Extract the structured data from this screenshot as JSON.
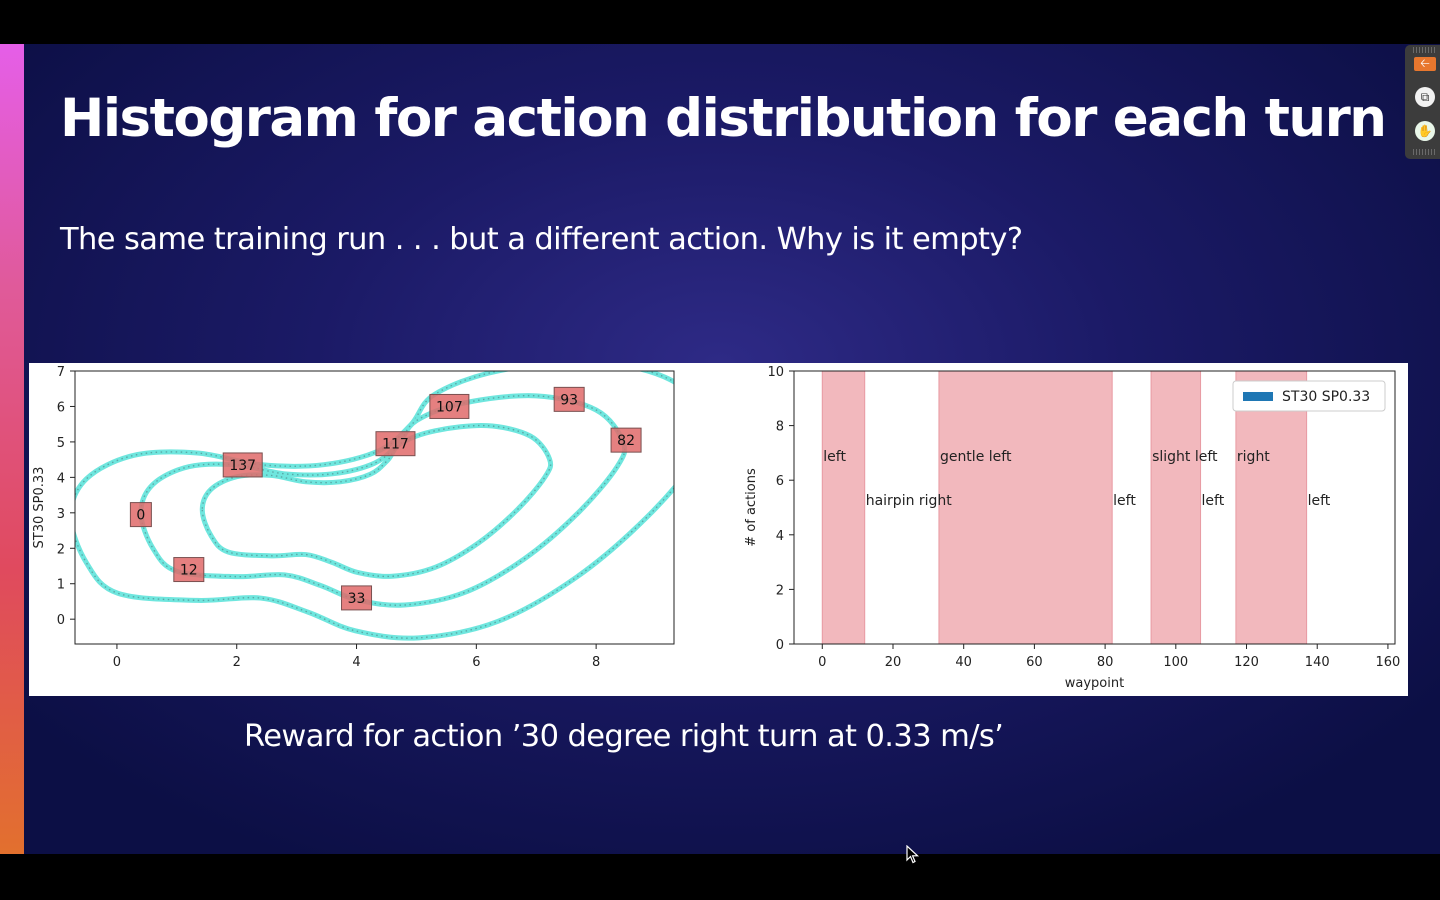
{
  "slide": {
    "title": "Histogram for action distribution for each turn",
    "subtitle": "The same training run . . . but a different action. Why is it empty?",
    "caption": "Reward for action ’30 degree right turn at 0.33 m/s’"
  },
  "colors": {
    "accent_gradient": [
      "#e55ee8",
      "#e04a5e",
      "#e2702e"
    ],
    "track": "#6fe6de",
    "waypoint_box": "#e06a6a",
    "turn_band": "#f2b8bd",
    "legend": "#1f77b4"
  },
  "toolbar": {
    "icons": [
      "collapse-arrow-icon",
      "copy-icon",
      "hand-icon"
    ]
  },
  "chart_data": [
    {
      "type": "scatter",
      "title": "",
      "xlabel": "",
      "ylabel": "ST30 SP0.33",
      "xlim": [
        -0.7,
        9.3
      ],
      "ylim": [
        -0.7,
        7.0
      ],
      "xticks": [
        0,
        2,
        4,
        6,
        8
      ],
      "yticks": [
        0,
        1,
        2,
        3,
        4,
        5,
        6,
        7
      ],
      "waypoint_labels": [
        {
          "label": "0",
          "x": 0.4,
          "y": 2.95
        },
        {
          "label": "12",
          "x": 1.2,
          "y": 1.4
        },
        {
          "label": "33",
          "x": 4.0,
          "y": 0.6
        },
        {
          "label": "82",
          "x": 8.5,
          "y": 5.05
        },
        {
          "label": "93",
          "x": 7.55,
          "y": 6.2
        },
        {
          "label": "107",
          "x": 5.55,
          "y": 6.0
        },
        {
          "label": "117",
          "x": 4.65,
          "y": 4.95
        },
        {
          "label": "137",
          "x": 2.1,
          "y": 4.35
        }
      ],
      "center_line": [
        [
          0.4,
          3.0
        ],
        [
          0.6,
          2.0
        ],
        [
          1.0,
          1.35
        ],
        [
          2.0,
          1.2
        ],
        [
          2.8,
          1.25
        ],
        [
          3.4,
          0.95
        ],
        [
          4.0,
          0.55
        ],
        [
          4.8,
          0.4
        ],
        [
          5.8,
          0.75
        ],
        [
          6.8,
          1.7
        ],
        [
          7.7,
          3.0
        ],
        [
          8.35,
          4.3
        ],
        [
          8.45,
          5.0
        ],
        [
          8.0,
          5.9
        ],
        [
          7.0,
          6.3
        ],
        [
          5.8,
          6.1
        ],
        [
          5.0,
          5.6
        ],
        [
          4.7,
          4.95
        ],
        [
          4.3,
          4.4
        ],
        [
          3.6,
          4.1
        ],
        [
          2.8,
          4.1
        ],
        [
          2.0,
          4.35
        ],
        [
          1.2,
          4.3
        ],
        [
          0.6,
          3.8
        ],
        [
          0.4,
          3.0
        ]
      ]
    },
    {
      "type": "bar",
      "title": "",
      "xlabel": "waypoint",
      "ylabel": "# of actions",
      "xlim": [
        -8,
        162
      ],
      "ylim": [
        0,
        10
      ],
      "xticks": [
        0,
        20,
        40,
        60,
        80,
        100,
        120,
        140,
        160
      ],
      "yticks": [
        0,
        2,
        4,
        6,
        8,
        10
      ],
      "series": [
        {
          "name": "ST30 SP0.33",
          "values": []
        }
      ],
      "turn_regions": [
        {
          "start": 0,
          "end": 12,
          "shaded": true
        },
        {
          "start": 12,
          "end": 33,
          "shaded": false
        },
        {
          "start": 33,
          "end": 82,
          "shaded": true
        },
        {
          "start": 82,
          "end": 93,
          "shaded": false
        },
        {
          "start": 93,
          "end": 107,
          "shaded": true
        },
        {
          "start": 107,
          "end": 117,
          "shaded": false
        },
        {
          "start": 117,
          "end": 137,
          "shaded": true
        },
        {
          "start": 137,
          "end": 160,
          "shaded": false
        }
      ],
      "annotations": [
        {
          "text": "left",
          "x": 0,
          "y": 6.7
        },
        {
          "text": "hairpin right",
          "x": 12,
          "y": 5.1
        },
        {
          "text": "gentle left",
          "x": 33,
          "y": 6.7
        },
        {
          "text": "left",
          "x": 82,
          "y": 5.1
        },
        {
          "text": "slight left",
          "x": 93,
          "y": 6.7
        },
        {
          "text": "left",
          "x": 107,
          "y": 5.1
        },
        {
          "text": "right",
          "x": 117,
          "y": 6.7
        },
        {
          "text": "left",
          "x": 137,
          "y": 5.1
        }
      ],
      "legend": "top-right"
    }
  ]
}
